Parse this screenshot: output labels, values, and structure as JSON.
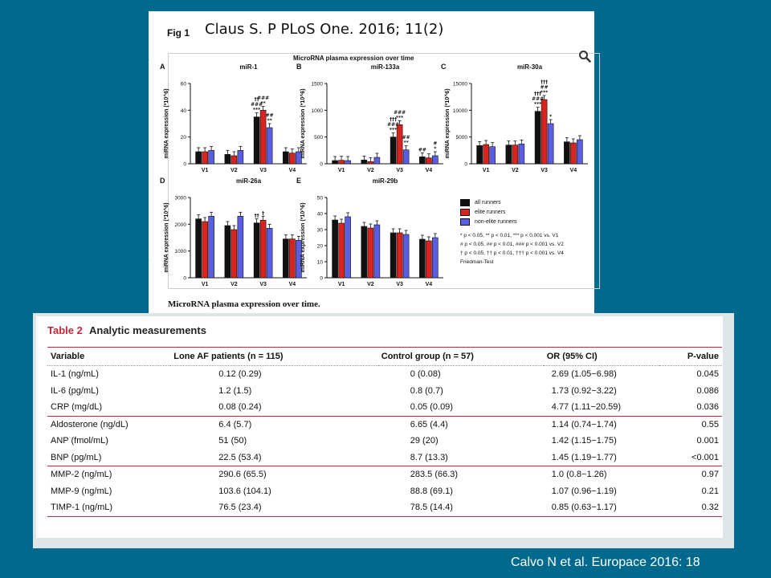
{
  "figure": {
    "label": "Fig 1",
    "citation": "Claus S. P PLoS One. 2016; 11(2)",
    "title": "MicroRNA plasma expression over time",
    "caption": "MicroRNA plasma expression over time.",
    "side_link_text": "...",
    "legend": {
      "items": [
        {
          "label": "all runners",
          "color": "#111111"
        },
        {
          "label": "elite runners",
          "color": "#d8231f"
        },
        {
          "label": "non-elite runners",
          "color": "#5b5ee0"
        }
      ],
      "notes": [
        "* p < 0.05, ** p < 0.01, *** p < 0.001 vs. V1",
        "# p < 0.05, ## p < 0.01, ### p < 0.001 vs. V2",
        "† p < 0.05, †† p < 0.01, ††† p < 0.001 vs. V4",
        "Friedman-Test"
      ]
    }
  },
  "chart_data": [
    {
      "type": "bar",
      "panel": "A",
      "title": "miR-1",
      "ylabel": "miRNA expression (*10^6)",
      "categories": [
        "V1",
        "V2",
        "V3",
        "V4"
      ],
      "ylim": [
        0,
        60
      ],
      "yticks": [
        0,
        20,
        40,
        60
      ],
      "series": [
        {
          "name": "all runners",
          "values": [
            9,
            7,
            35,
            9
          ]
        },
        {
          "name": "elite runners",
          "values": [
            9,
            6,
            40,
            8
          ]
        },
        {
          "name": "non-elite runners",
          "values": [
            10,
            10,
            27,
            9
          ]
        }
      ],
      "annotations": [
        {
          "category": "V3",
          "series": 0,
          "text": "††\n###\n***"
        },
        {
          "category": "V3",
          "series": 1,
          "text": "###\n**"
        },
        {
          "category": "V3",
          "series": 2,
          "text": "##\n**"
        }
      ]
    },
    {
      "type": "bar",
      "panel": "B",
      "title": "miR-133a",
      "ylabel": "miRNA expression (*10^6)",
      "categories": [
        "V1",
        "V2",
        "V3",
        "V4"
      ],
      "ylim": [
        0,
        1500
      ],
      "yticks": [
        0,
        500,
        1000,
        1500
      ],
      "series": [
        {
          "name": "all runners",
          "values": [
            60,
            70,
            500,
            130
          ]
        },
        {
          "name": "elite runners",
          "values": [
            65,
            40,
            730,
            110
          ]
        },
        {
          "name": "non-elite runners",
          "values": [
            60,
            120,
            260,
            150
          ]
        }
      ],
      "annotations": [
        {
          "category": "V3",
          "series": 0,
          "text": "†††\n###\n***"
        },
        {
          "category": "V3",
          "series": 1,
          "text": "###\n***"
        },
        {
          "category": "V3",
          "series": 2,
          "text": "##\n**"
        },
        {
          "category": "V4",
          "series": 0,
          "text": "##"
        },
        {
          "category": "V4",
          "series": 2,
          "text": "#\n*"
        }
      ]
    },
    {
      "type": "bar",
      "panel": "C",
      "title": "miR-30a",
      "ylabel": "miRNA expression (*10^6)",
      "categories": [
        "V1",
        "V2",
        "V3",
        "V4"
      ],
      "ylim": [
        0,
        15000
      ],
      "yticks": [
        0,
        5000,
        10000,
        15000
      ],
      "series": [
        {
          "name": "all runners",
          "values": [
            3400,
            3500,
            9800,
            4100
          ]
        },
        {
          "name": "elite runners",
          "values": [
            3600,
            3500,
            12000,
            3900
          ]
        },
        {
          "name": "non-elite runners",
          "values": [
            3200,
            3700,
            7500,
            4500
          ]
        }
      ],
      "annotations": [
        {
          "category": "V3",
          "series": 0,
          "text": "†††\n###\n***"
        },
        {
          "category": "V3",
          "series": 1,
          "text": "†††\n##\n***"
        },
        {
          "category": "V3",
          "series": 2,
          "text": "*"
        }
      ]
    },
    {
      "type": "bar",
      "panel": "D",
      "title": "miR-26a",
      "ylabel": "miRNA expression (*10^6)",
      "categories": [
        "V1",
        "V2",
        "V3",
        "V4"
      ],
      "ylim": [
        0,
        3000
      ],
      "yticks": [
        0,
        1000,
        2000,
        3000
      ],
      "series": [
        {
          "name": "all runners",
          "values": [
            2200,
            1950,
            2050,
            1450
          ]
        },
        {
          "name": "elite runners",
          "values": [
            2100,
            1800,
            2150,
            1450
          ]
        },
        {
          "name": "non-elite runners",
          "values": [
            2300,
            2300,
            1850,
            1400
          ]
        }
      ],
      "annotations": [
        {
          "category": "V3",
          "series": 0,
          "text": "††"
        },
        {
          "category": "V3",
          "series": 1,
          "text": "†"
        }
      ]
    },
    {
      "type": "bar",
      "panel": "E",
      "title": "miR-29b",
      "ylabel": "miRNA expression (*10^6)",
      "categories": [
        "V1",
        "V2",
        "V3",
        "V4"
      ],
      "ylim": [
        0,
        50
      ],
      "yticks": [
        0,
        10,
        20,
        30,
        40,
        50
      ],
      "series": [
        {
          "name": "all runners",
          "values": [
            36,
            32,
            28,
            24
          ]
        },
        {
          "name": "elite runners",
          "values": [
            34,
            31,
            28,
            23
          ]
        },
        {
          "name": "non-elite runners",
          "values": [
            38,
            33,
            27,
            25
          ]
        }
      ],
      "annotations": []
    },
    {
      "type": "table",
      "title": "Analytic measurements",
      "columns": [
        "Variable",
        "Lone AF patients (n = 115)",
        "Control group (n = 57)",
        "OR (95% CI)",
        "P-value"
      ],
      "rows": [
        [
          "IL-1 (ng/mL)",
          "0.12 (0.29)",
          "0 (0.08)",
          "2.69 (1.05−6.98)",
          "0.045"
        ],
        [
          "IL-6 (pg/mL)",
          "1.2 (1.5)",
          "0.8 (0.7)",
          "1.73 (0.92−3.22)",
          "0.086"
        ],
        [
          "CRP (mg/dL)",
          "0.08 (0.24)",
          "0.05 (0.09)",
          "4.77 (1.11−20.59)",
          "0.036"
        ],
        [
          "Aldosterone (ng/dL)",
          "6.4 (5.7)",
          "6.65 (4.4)",
          "1.14 (0.74−1.74)",
          "0.55"
        ],
        [
          "ANP (fmol/mL)",
          "51 (50)",
          "29 (20)",
          "1.42 (1.15−1.75)",
          "0.001"
        ],
        [
          "BNP (pg/mL)",
          "22.5 (53.4)",
          "8.7 (13.3)",
          "1.45 (1.19−1.77)",
          "<0.001"
        ],
        [
          "MMP-2 (ng/mL)",
          "290.6 (65.5)",
          "283.5 (66.3)",
          "1.0 (0.8−1.26)",
          "0.97"
        ],
        [
          "MMP-9 (ng/mL)",
          "103.6 (104.1)",
          "88.8 (69.1)",
          "1.07 (0.96−1.19)",
          "0.21"
        ],
        [
          "TIMP-1 (ng/mL)",
          "76.5 (23.4)",
          "78.5 (14.4)",
          "0.85 (0.63−1.17)",
          "0.32"
        ]
      ],
      "groups_end_at": [
        2,
        5,
        8
      ]
    }
  ],
  "table": {
    "number": "Table 2",
    "title": "Analytic measurements",
    "headers": {
      "variable": "Variable",
      "lone_af": "Lone AF patients (n = 115)",
      "control": "Control group (n = 57)",
      "or": "OR (95% CI)",
      "p": "P-value"
    }
  },
  "footer": {
    "citation": "Calvo N et al. Europace 2016: 18"
  },
  "colors": {
    "background": "#006a8e",
    "all_runners": "#111111",
    "elite_runners": "#d8231f",
    "non_elite_runners": "#5b5ee0",
    "table_rule": "#c0283b"
  }
}
